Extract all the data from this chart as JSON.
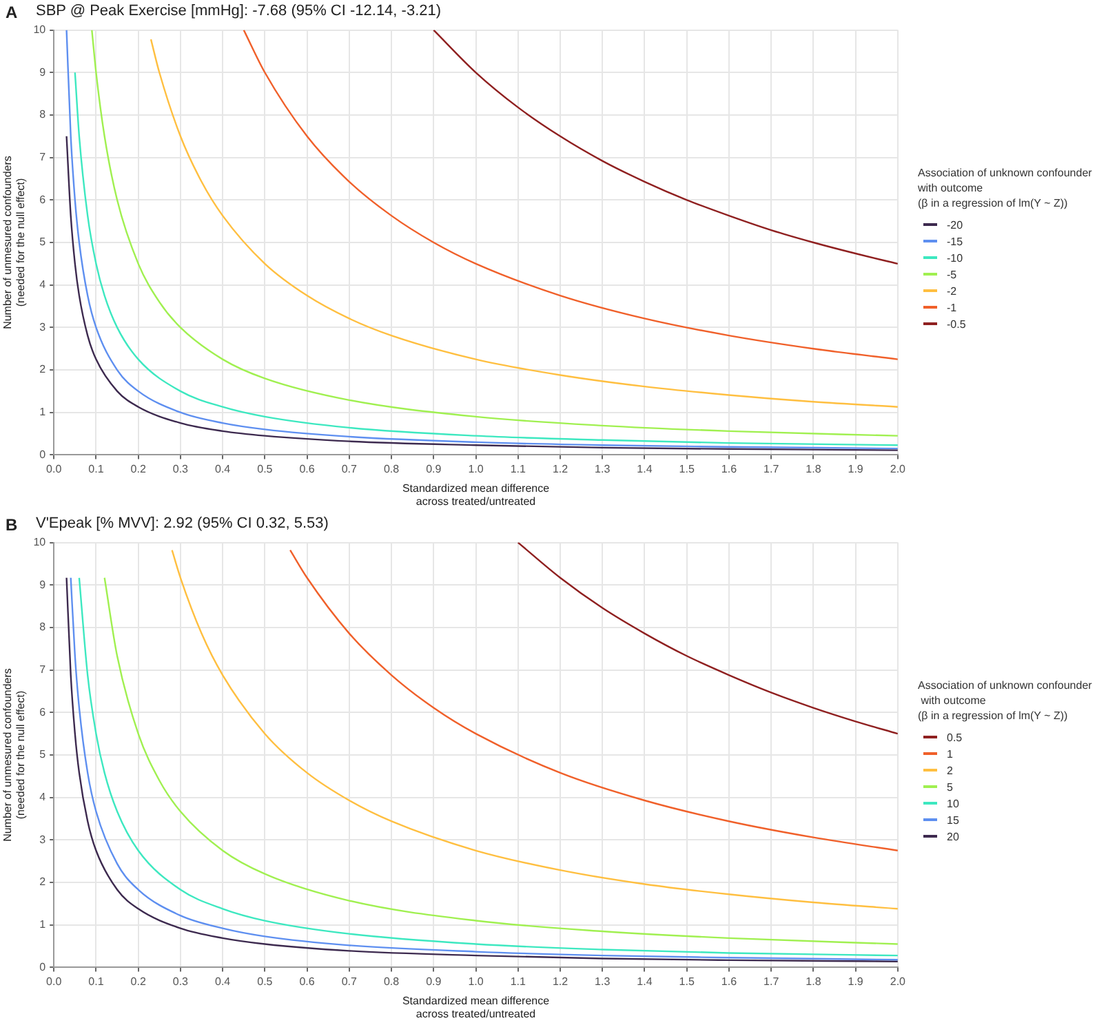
{
  "chart_data": [
    {
      "type": "line",
      "title": "SBP @ Peak Exercise [mmHg]: -7.68 (95% CI -12.14, -3.21)",
      "annotations": [
        "A"
      ],
      "xlabel": "Standardized mean difference\nacross treated/untreated",
      "ylabel": "Number of unmesured confounders\n(needed for the null effect)",
      "legend_title": "Association of unknown confounder\nwith outcome\n(β in a regression of lm(Y ~ Z))",
      "legend": "right",
      "grid": true,
      "xlim": [
        0,
        2
      ],
      "ylim": [
        0,
        10
      ],
      "xticks": [
        {
          "value": 0,
          "label": "0.0"
        },
        {
          "value": 0.1,
          "label": "0.1"
        },
        {
          "value": 0.2,
          "label": "0.2"
        },
        {
          "value": 0.3,
          "label": "0.3"
        },
        {
          "value": 0.4,
          "label": "0.4"
        },
        {
          "value": 0.5,
          "label": "0.5"
        },
        {
          "value": 0.6,
          "label": "0.6"
        },
        {
          "value": 0.7,
          "label": "0.7"
        },
        {
          "value": 0.8,
          "label": "0.8"
        },
        {
          "value": 0.9,
          "label": "0.9"
        },
        {
          "value": 1,
          "label": "1.0"
        },
        {
          "value": 1.1,
          "label": "1.1"
        },
        {
          "value": 1.2,
          "label": "1.2"
        },
        {
          "value": 1.3,
          "label": "1.3"
        },
        {
          "value": 1.4,
          "label": "1.4"
        },
        {
          "value": 1.5,
          "label": "1.5"
        },
        {
          "value": 1.6,
          "label": "1.6"
        },
        {
          "value": 1.7,
          "label": "1.7"
        },
        {
          "value": 1.8,
          "label": "1.8"
        },
        {
          "value": 1.9,
          "label": "1.9"
        },
        {
          "value": 2,
          "label": "2.0"
        }
      ],
      "yticks": [
        0,
        1,
        2,
        3,
        4,
        5,
        6,
        7,
        8,
        9,
        10
      ],
      "series": [
        {
          "name": "-20",
          "color": "#3d2a4f",
          "x": [
            0.03,
            0.04,
            0.05,
            0.06,
            0.08,
            0.1,
            0.15,
            0.2,
            0.3,
            0.4,
            0.5,
            0.7,
            1.0,
            1.3,
            1.6,
            2.0
          ],
          "values": [
            7.5,
            5.63,
            4.5,
            3.75,
            2.81,
            2.25,
            1.5,
            1.13,
            0.75,
            0.56,
            0.45,
            0.32,
            0.23,
            0.17,
            0.14,
            0.11
          ]
        },
        {
          "name": "-15",
          "color": "#5e8ff0",
          "x": [
            0.03,
            0.04,
            0.05,
            0.06,
            0.08,
            0.1,
            0.15,
            0.2,
            0.3,
            0.4,
            0.5,
            0.7,
            1.0,
            1.3,
            1.6,
            2.0
          ],
          "values": [
            10,
            7.5,
            6,
            5,
            3.75,
            3,
            2,
            1.5,
            1,
            0.75,
            0.6,
            0.43,
            0.3,
            0.23,
            0.19,
            0.15
          ]
        },
        {
          "name": "-10",
          "color": "#3de8c0",
          "x": [
            0.05,
            0.06,
            0.08,
            0.1,
            0.12,
            0.15,
            0.2,
            0.3,
            0.4,
            0.5,
            0.7,
            1.0,
            1.3,
            1.6,
            2.0
          ],
          "values": [
            9,
            7.5,
            5.63,
            4.5,
            3.75,
            3,
            2.25,
            1.5,
            1.13,
            0.9,
            0.64,
            0.45,
            0.35,
            0.28,
            0.23
          ]
        },
        {
          "name": "-5",
          "color": "#a0f050",
          "x": [
            0.09,
            0.1,
            0.12,
            0.15,
            0.2,
            0.25,
            0.3,
            0.4,
            0.5,
            0.7,
            1.0,
            1.3,
            1.6,
            2.0
          ],
          "values": [
            10,
            9,
            7.5,
            6,
            4.5,
            3.6,
            3,
            2.25,
            1.8,
            1.29,
            0.9,
            0.69,
            0.56,
            0.45
          ]
        },
        {
          "name": "-2",
          "color": "#ffbf40",
          "x": [
            0.23,
            0.25,
            0.3,
            0.35,
            0.4,
            0.5,
            0.6,
            0.7,
            0.8,
            1.0,
            1.2,
            1.4,
            1.6,
            1.8,
            2.0
          ],
          "values": [
            9.78,
            9,
            7.5,
            6.43,
            5.63,
            4.5,
            3.75,
            3.21,
            2.81,
            2.25,
            1.88,
            1.61,
            1.41,
            1.25,
            1.13
          ]
        },
        {
          "name": "-1",
          "color": "#f0602a",
          "x": [
            0.45,
            0.5,
            0.6,
            0.7,
            0.8,
            0.9,
            1.0,
            1.2,
            1.4,
            1.6,
            1.8,
            2.0
          ],
          "values": [
            10,
            9,
            7.5,
            6.43,
            5.63,
            5,
            4.5,
            3.75,
            3.21,
            2.81,
            2.5,
            2.25
          ]
        },
        {
          "name": "-0.5",
          "color": "#8f2020",
          "x": [
            0.9,
            1.0,
            1.1,
            1.2,
            1.3,
            1.4,
            1.5,
            1.6,
            1.7,
            1.8,
            1.9,
            2.0
          ],
          "values": [
            10,
            9,
            8.18,
            7.5,
            6.92,
            6.43,
            6,
            5.63,
            5.29,
            5,
            4.74,
            4.5
          ]
        }
      ]
    },
    {
      "type": "line",
      "title": "V'Epeak [% MVV]: 2.92 (95% CI 0.32, 5.53)",
      "annotations": [
        "B"
      ],
      "xlabel": "Standardized mean difference\nacross treated/untreated",
      "ylabel": "Number of unmesured confounders\n(needed for the null effect)",
      "legend_title": "Association of unknown confounder\n with outcome\n(β in a regression of lm(Y ~ Z))",
      "legend": "right",
      "grid": true,
      "xlim": [
        0,
        2
      ],
      "ylim": [
        0,
        10
      ],
      "xticks": [
        {
          "value": 0,
          "label": "0.0"
        },
        {
          "value": 0.1,
          "label": "0.1"
        },
        {
          "value": 0.2,
          "label": "0.2"
        },
        {
          "value": 0.3,
          "label": "0.3"
        },
        {
          "value": 0.4,
          "label": "0.4"
        },
        {
          "value": 0.5,
          "label": "0.5"
        },
        {
          "value": 0.6,
          "label": "0.6"
        },
        {
          "value": 0.7,
          "label": "0.7"
        },
        {
          "value": 0.8,
          "label": "0.8"
        },
        {
          "value": 0.9,
          "label": "0.9"
        },
        {
          "value": 1,
          "label": "1.0"
        },
        {
          "value": 1.1,
          "label": "1.1"
        },
        {
          "value": 1.2,
          "label": "1.2"
        },
        {
          "value": 1.3,
          "label": "1.3"
        },
        {
          "value": 1.4,
          "label": "1.4"
        },
        {
          "value": 1.5,
          "label": "1.5"
        },
        {
          "value": 1.6,
          "label": "1.6"
        },
        {
          "value": 1.7,
          "label": "1.7"
        },
        {
          "value": 1.8,
          "label": "1.8"
        },
        {
          "value": 1.9,
          "label": "1.9"
        },
        {
          "value": 2,
          "label": "2.0"
        }
      ],
      "yticks": [
        0,
        1,
        2,
        3,
        4,
        5,
        6,
        7,
        8,
        9,
        10
      ],
      "series": [
        {
          "name": "0.5",
          "color": "#8f2020",
          "x": [
            1.1,
            1.2,
            1.3,
            1.4,
            1.5,
            1.6,
            1.7,
            1.8,
            1.9,
            2.0
          ],
          "values": [
            10,
            9.17,
            8.46,
            7.86,
            7.33,
            6.88,
            6.47,
            6.11,
            5.79,
            5.5
          ]
        },
        {
          "name": "1",
          "color": "#f0602a",
          "x": [
            0.56,
            0.6,
            0.7,
            0.8,
            0.9,
            1.0,
            1.2,
            1.4,
            1.6,
            1.8,
            2.0
          ],
          "values": [
            9.82,
            9.17,
            7.86,
            6.88,
            6.11,
            5.5,
            4.58,
            3.93,
            3.44,
            3.06,
            2.75
          ]
        },
        {
          "name": "2",
          "color": "#ffbf40",
          "x": [
            0.28,
            0.3,
            0.35,
            0.4,
            0.5,
            0.6,
            0.7,
            0.8,
            1.0,
            1.2,
            1.4,
            1.6,
            1.8,
            2.0
          ],
          "values": [
            9.82,
            9.17,
            7.86,
            6.88,
            5.5,
            4.58,
            3.93,
            3.44,
            2.75,
            2.29,
            1.96,
            1.72,
            1.53,
            1.38
          ]
        },
        {
          "name": "5",
          "color": "#a0f050",
          "x": [
            0.12,
            0.15,
            0.2,
            0.25,
            0.3,
            0.4,
            0.5,
            0.7,
            1.0,
            1.3,
            1.6,
            2.0
          ],
          "values": [
            9.17,
            7.33,
            5.5,
            4.4,
            3.67,
            2.75,
            2.2,
            1.57,
            1.1,
            0.85,
            0.69,
            0.55
          ]
        },
        {
          "name": "10",
          "color": "#3de8c0",
          "x": [
            0.06,
            0.08,
            0.1,
            0.12,
            0.15,
            0.2,
            0.3,
            0.4,
            0.5,
            0.7,
            1.0,
            1.3,
            1.6,
            2.0
          ],
          "values": [
            9.17,
            6.88,
            5.5,
            4.58,
            3.67,
            2.75,
            1.83,
            1.38,
            1.1,
            0.79,
            0.55,
            0.42,
            0.34,
            0.28
          ]
        },
        {
          "name": "15",
          "color": "#5e8ff0",
          "x": [
            0.04,
            0.05,
            0.06,
            0.08,
            0.1,
            0.15,
            0.2,
            0.3,
            0.4,
            0.5,
            0.7,
            1.0,
            1.3,
            1.6,
            2.0
          ],
          "values": [
            9.17,
            7.33,
            6.11,
            4.58,
            3.67,
            2.44,
            1.83,
            1.22,
            0.92,
            0.73,
            0.52,
            0.37,
            0.28,
            0.23,
            0.18
          ]
        },
        {
          "name": "20",
          "color": "#3d2a4f",
          "x": [
            0.03,
            0.04,
            0.05,
            0.06,
            0.08,
            0.1,
            0.15,
            0.2,
            0.3,
            0.4,
            0.5,
            0.7,
            1.0,
            1.3,
            1.6,
            2.0
          ],
          "values": [
            9.17,
            6.88,
            5.5,
            4.58,
            3.44,
            2.75,
            1.83,
            1.38,
            0.92,
            0.69,
            0.55,
            0.39,
            0.28,
            0.21,
            0.17,
            0.14
          ]
        }
      ]
    }
  ]
}
